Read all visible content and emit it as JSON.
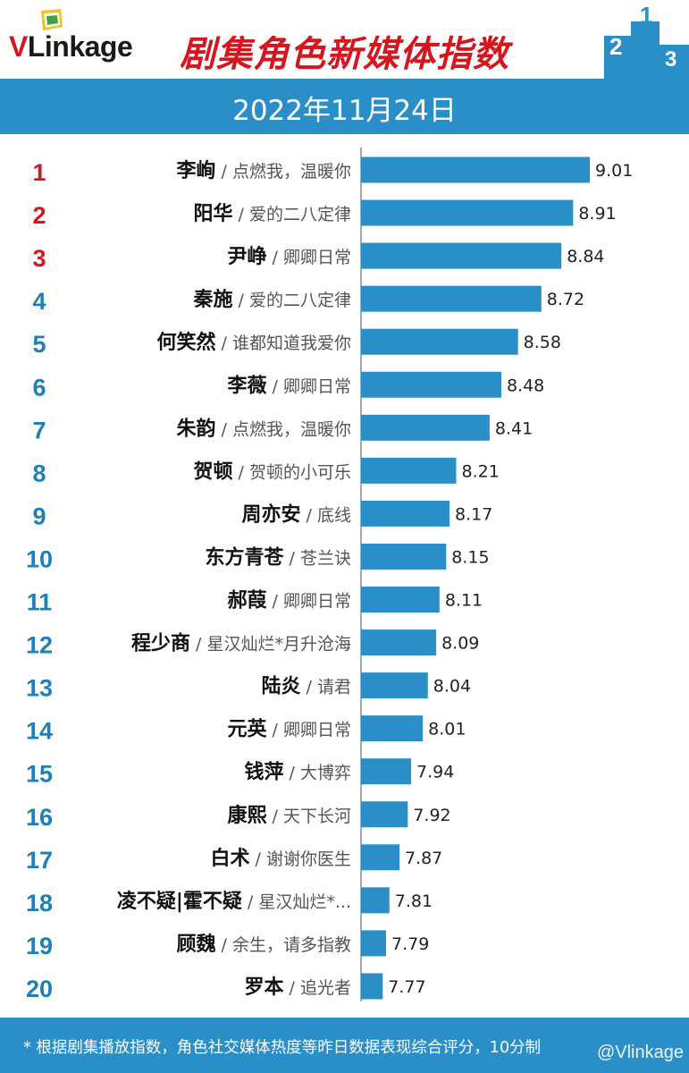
{
  "header": {
    "logo_v": "V",
    "logo_rest": "Link",
    "logo_age": "age",
    "title": "剧集角色新媒体指数"
  },
  "podium_labels": [
    "2",
    "1",
    "3"
  ],
  "date": "2022年11月24日",
  "chart_data": {
    "type": "bar",
    "orientation": "horizontal",
    "title": "剧集角色新媒体指数",
    "subtitle": "2022年11月24日",
    "ranks": [
      "1",
      "2",
      "3",
      "4",
      "5",
      "6",
      "7",
      "8",
      "9",
      "10",
      "11",
      "12",
      "13",
      "14",
      "15",
      "16",
      "17",
      "18",
      "19",
      "20"
    ],
    "names": [
      "李峋",
      "阳华",
      "尹峥",
      "秦施",
      "何笑然",
      "李薇",
      "朱韵",
      "贺顿",
      "周亦安",
      "东方青苍",
      "郝葭",
      "程少商",
      "陆炎",
      "元英",
      "钱萍",
      "康熙",
      "白术",
      "凌不疑|霍不疑",
      "顾魏",
      "罗本"
    ],
    "shows": [
      "点燃我，温暖你",
      "爱的二八定律",
      "卿卿日常",
      "爱的二八定律",
      "谁都知道我爱你",
      "卿卿日常",
      "点燃我，温暖你",
      "贺顿的小可乐",
      "底线",
      "苍兰诀",
      "卿卿日常",
      "星汉灿烂*月升沧海",
      "请君",
      "卿卿日常",
      "大博弈",
      "天下长河",
      "谢谢你医生",
      "星汉灿烂*...",
      "余生，请多指教",
      "追光者"
    ],
    "values": [
      9.01,
      8.91,
      8.84,
      8.72,
      8.58,
      8.48,
      8.41,
      8.21,
      8.17,
      8.15,
      8.11,
      8.09,
      8.04,
      8.01,
      7.94,
      7.92,
      7.87,
      7.81,
      7.79,
      7.77
    ],
    "value_labels": [
      "9.01",
      "8.91",
      "8.84",
      "8.72",
      "8.58",
      "8.48",
      "8.41",
      "8.21",
      "8.17",
      "8.15",
      "8.11",
      "8.09",
      "8.04",
      "8.01",
      "7.94",
      "7.92",
      "7.87",
      "7.81",
      "7.79",
      "7.77"
    ],
    "xlim": [
      7.64,
      9.01
    ],
    "grid": false,
    "colors": {
      "bar": "#2a8fc7",
      "rank_top": "#d6161e",
      "rank_other": "#1f7fb9",
      "name": "#111111",
      "show": "#555555"
    }
  },
  "footer": {
    "note": "* 根据剧集播放指数，角色社交媒体热度等昨日数据表现综合评分，10分制",
    "watermark": "@Vlinkage"
  }
}
